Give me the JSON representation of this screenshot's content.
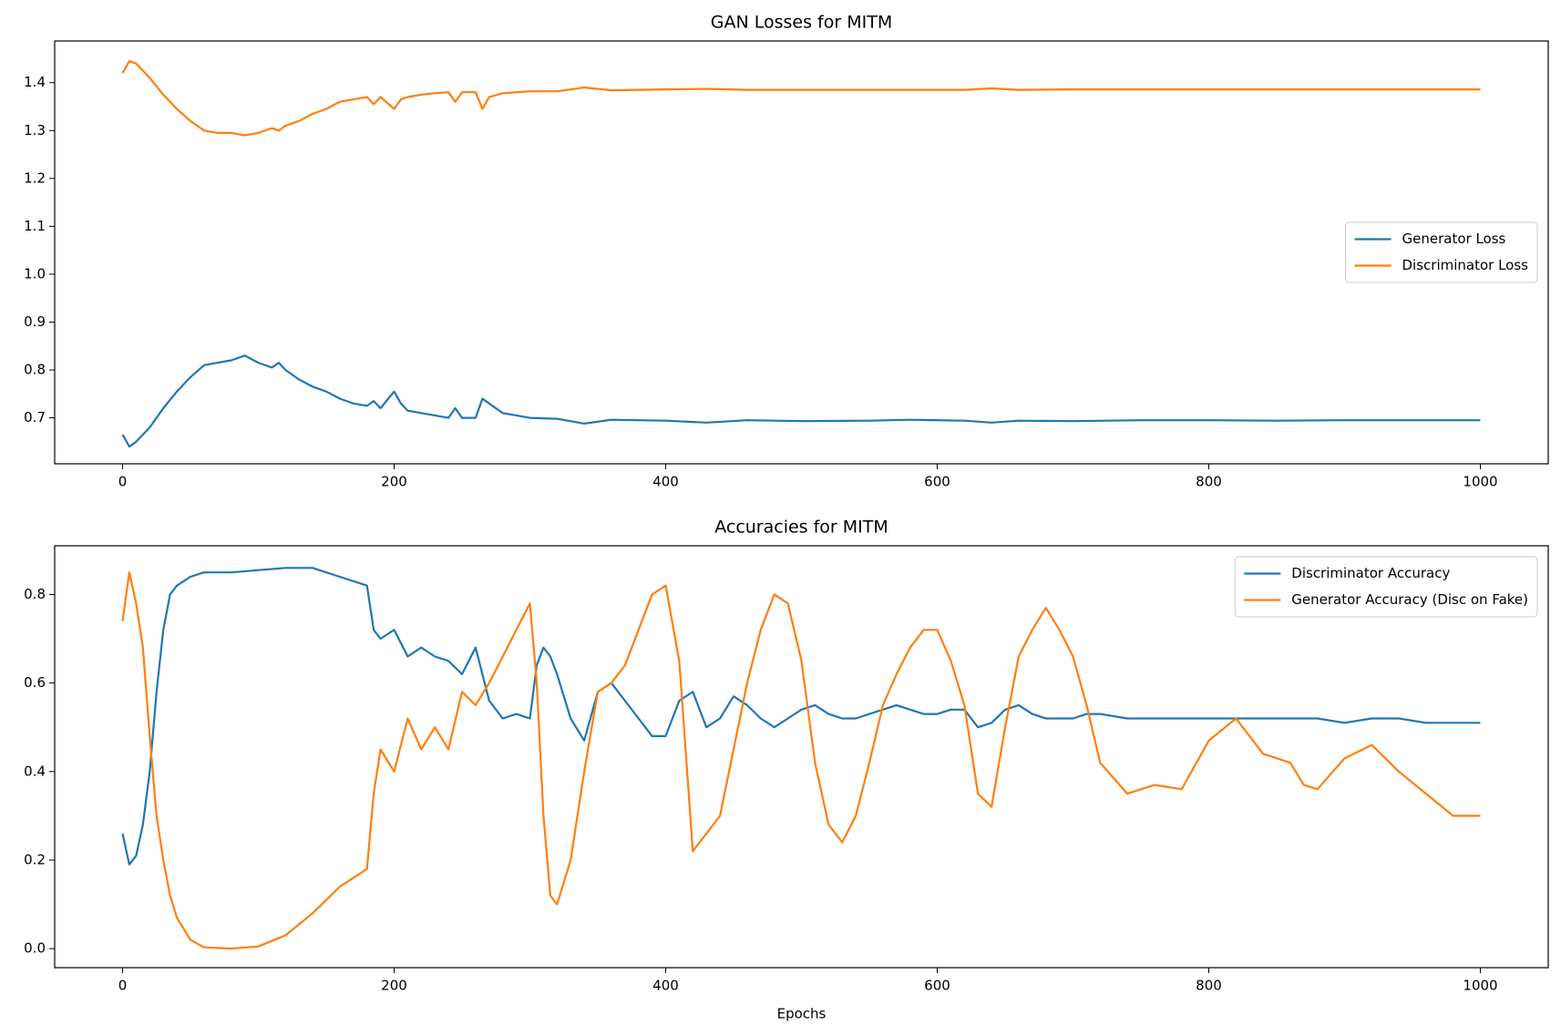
{
  "chart_data": [
    {
      "type": "line",
      "title": "GAN Losses for MITM",
      "legend": "center right",
      "xlim": [
        -50,
        1050
      ],
      "xticks": [
        0,
        200,
        400,
        600,
        800,
        1000
      ],
      "ylim": [
        0.604,
        1.487
      ],
      "yticks": [
        0.7,
        0.8,
        0.9,
        {
          "value": 1,
          "label": "1.0"
        },
        1.1,
        1.2,
        1.3,
        1.4
      ],
      "x": [
        0,
        5,
        10,
        20,
        30,
        40,
        50,
        60,
        70,
        80,
        90,
        100,
        110,
        115,
        120,
        130,
        140,
        150,
        160,
        170,
        180,
        185,
        190,
        200,
        205,
        210,
        220,
        230,
        240,
        245,
        250,
        260,
        265,
        270,
        280,
        300,
        320,
        340,
        360,
        400,
        430,
        460,
        500,
        550,
        580,
        620,
        640,
        660,
        700,
        750,
        800,
        850,
        900,
        950,
        1000
      ],
      "series": [
        {
          "name": "Generator Loss",
          "color": "#1f77b4",
          "values": [
            0.665,
            0.64,
            0.65,
            0.68,
            0.72,
            0.755,
            0.785,
            0.81,
            0.815,
            0.82,
            0.83,
            0.815,
            0.805,
            0.815,
            0.8,
            0.78,
            0.765,
            0.755,
            0.74,
            0.73,
            0.725,
            0.735,
            0.72,
            0.755,
            0.73,
            0.715,
            0.71,
            0.705,
            0.7,
            0.72,
            0.7,
            0.7,
            0.74,
            0.73,
            0.71,
            0.7,
            0.698,
            0.688,
            0.696,
            0.694,
            0.69,
            0.695,
            0.693,
            0.694,
            0.696,
            0.694,
            0.69,
            0.694,
            0.693,
            0.695,
            0.695,
            0.694,
            0.695,
            0.695,
            0.695
          ]
        },
        {
          "name": "Discriminator Loss",
          "color": "#ff7f0e",
          "values": [
            1.42,
            1.445,
            1.44,
            1.41,
            1.375,
            1.345,
            1.32,
            1.3,
            1.295,
            1.295,
            1.29,
            1.295,
            1.305,
            1.3,
            1.31,
            1.32,
            1.335,
            1.345,
            1.36,
            1.365,
            1.37,
            1.355,
            1.37,
            1.345,
            1.365,
            1.37,
            1.375,
            1.378,
            1.38,
            1.36,
            1.38,
            1.38,
            1.345,
            1.37,
            1.378,
            1.382,
            1.382,
            1.39,
            1.384,
            1.386,
            1.387,
            1.385,
            1.385,
            1.385,
            1.385,
            1.385,
            1.388,
            1.385,
            1.386,
            1.386,
            1.386,
            1.386,
            1.386,
            1.386,
            1.386
          ]
        }
      ]
    },
    {
      "type": "line",
      "title": "Accuracies for MITM",
      "x_label": "Epochs",
      "legend": "upper right",
      "xlim": [
        -50,
        1050
      ],
      "xticks": [
        0,
        200,
        400,
        600,
        800,
        1000
      ],
      "ylim": [
        -0.043,
        0.91
      ],
      "yticks": [
        {
          "value": 0,
          "label": "0.0"
        },
        0.2,
        0.4,
        0.6,
        0.8
      ],
      "x": [
        0,
        5,
        10,
        15,
        20,
        25,
        30,
        35,
        40,
        50,
        60,
        80,
        100,
        120,
        140,
        160,
        180,
        185,
        190,
        200,
        210,
        220,
        230,
        240,
        250,
        260,
        270,
        280,
        290,
        300,
        305,
        310,
        315,
        320,
        330,
        340,
        350,
        360,
        370,
        380,
        390,
        400,
        410,
        420,
        430,
        440,
        450,
        460,
        470,
        480,
        490,
        500,
        510,
        520,
        530,
        540,
        550,
        560,
        570,
        580,
        590,
        600,
        610,
        620,
        630,
        640,
        650,
        660,
        670,
        680,
        690,
        700,
        710,
        720,
        740,
        760,
        780,
        800,
        820,
        840,
        860,
        870,
        880,
        900,
        920,
        940,
        960,
        980,
        1000
      ],
      "series": [
        {
          "name": "Discriminator Accuracy",
          "color": "#1f77b4",
          "values": [
            0.26,
            0.19,
            0.21,
            0.28,
            0.4,
            0.58,
            0.72,
            0.8,
            0.82,
            0.84,
            0.85,
            0.85,
            0.855,
            0.86,
            0.86,
            0.84,
            0.82,
            0.72,
            0.7,
            0.72,
            0.66,
            0.68,
            0.66,
            0.65,
            0.62,
            0.68,
            0.56,
            0.52,
            0.53,
            0.52,
            0.64,
            0.68,
            0.66,
            0.62,
            0.52,
            0.47,
            0.58,
            0.6,
            0.56,
            0.52,
            0.48,
            0.48,
            0.56,
            0.58,
            0.5,
            0.52,
            0.57,
            0.55,
            0.52,
            0.5,
            0.52,
            0.54,
            0.55,
            0.53,
            0.52,
            0.52,
            0.53,
            0.54,
            0.55,
            0.54,
            0.53,
            0.53,
            0.54,
            0.54,
            0.5,
            0.51,
            0.54,
            0.55,
            0.53,
            0.52,
            0.52,
            0.52,
            0.53,
            0.53,
            0.52,
            0.52,
            0.52,
            0.52,
            0.52,
            0.52,
            0.52,
            0.52,
            0.52,
            0.51,
            0.52,
            0.52,
            0.51,
            0.51,
            0.51
          ]
        },
        {
          "name": "Generator Accuracy (Disc on Fake)",
          "color": "#ff7f0e",
          "values": [
            0.74,
            0.85,
            0.78,
            0.68,
            0.48,
            0.3,
            0.2,
            0.12,
            0.07,
            0.02,
            0.003,
            0,
            0.005,
            0.03,
            0.08,
            0.14,
            0.18,
            0.35,
            0.45,
            0.4,
            0.52,
            0.45,
            0.5,
            0.45,
            0.58,
            0.55,
            0.6,
            0.66,
            0.72,
            0.78,
            0.6,
            0.3,
            0.12,
            0.1,
            0.2,
            0.4,
            0.58,
            0.6,
            0.64,
            0.72,
            0.8,
            0.82,
            0.65,
            0.22,
            0.26,
            0.3,
            0.45,
            0.6,
            0.72,
            0.8,
            0.78,
            0.65,
            0.42,
            0.28,
            0.24,
            0.3,
            0.42,
            0.55,
            0.62,
            0.68,
            0.72,
            0.72,
            0.65,
            0.55,
            0.35,
            0.32,
            0.5,
            0.66,
            0.72,
            0.77,
            0.72,
            0.66,
            0.55,
            0.42,
            0.35,
            0.37,
            0.36,
            0.47,
            0.52,
            0.44,
            0.42,
            0.37,
            0.36,
            0.43,
            0.46,
            0.4,
            0.35,
            0.3,
            0.3
          ]
        }
      ]
    }
  ]
}
